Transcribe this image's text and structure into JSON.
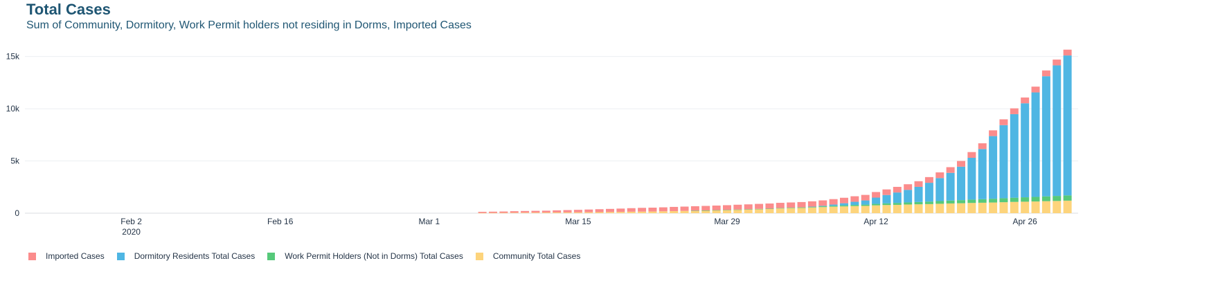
{
  "header": {
    "title": "Total Cases",
    "subtitle": "Sum of Community, Dormitory, Work Permit holders not residing in Dorms, Imported Cases"
  },
  "chart_data": {
    "type": "bar",
    "stacked": true,
    "x_start": "2020-01-23",
    "x_end": "2020-05-01",
    "x_ticks": [
      {
        "date": "2020-02-02",
        "label": "Feb 2",
        "sub": "2020"
      },
      {
        "date": "2020-02-16",
        "label": "Feb 16",
        "sub": ""
      },
      {
        "date": "2020-03-01",
        "label": "Mar 1",
        "sub": ""
      },
      {
        "date": "2020-03-15",
        "label": "Mar 15",
        "sub": ""
      },
      {
        "date": "2020-03-29",
        "label": "Mar 29",
        "sub": ""
      },
      {
        "date": "2020-04-12",
        "label": "Apr 12",
        "sub": ""
      },
      {
        "date": "2020-04-26",
        "label": "Apr 26",
        "sub": ""
      }
    ],
    "ylim": [
      0,
      16300
    ],
    "y_ticks": [
      {
        "value": 0,
        "label": "0"
      },
      {
        "value": 5000,
        "label": "5k"
      },
      {
        "value": 10000,
        "label": "10k"
      },
      {
        "value": 15000,
        "label": "15k"
      }
    ],
    "grid": true,
    "legend_position": "bottom-left",
    "x": [
      "2020-03-06",
      "2020-03-07",
      "2020-03-08",
      "2020-03-09",
      "2020-03-10",
      "2020-03-11",
      "2020-03-12",
      "2020-03-13",
      "2020-03-14",
      "2020-03-15",
      "2020-03-16",
      "2020-03-17",
      "2020-03-18",
      "2020-03-19",
      "2020-03-20",
      "2020-03-21",
      "2020-03-22",
      "2020-03-23",
      "2020-03-24",
      "2020-03-25",
      "2020-03-26",
      "2020-03-27",
      "2020-03-28",
      "2020-03-29",
      "2020-03-30",
      "2020-03-31",
      "2020-04-01",
      "2020-04-02",
      "2020-04-03",
      "2020-04-04",
      "2020-04-05",
      "2020-04-06",
      "2020-04-07",
      "2020-04-08",
      "2020-04-09",
      "2020-04-10",
      "2020-04-11",
      "2020-04-12",
      "2020-04-13",
      "2020-04-14",
      "2020-04-15",
      "2020-04-16",
      "2020-04-17",
      "2020-04-18",
      "2020-04-19",
      "2020-04-20",
      "2020-04-21",
      "2020-04-22",
      "2020-04-23",
      "2020-04-24",
      "2020-04-25",
      "2020-04-26",
      "2020-04-27",
      "2020-04-28",
      "2020-04-29",
      "2020-04-30"
    ],
    "series": [
      {
        "name": "Community Total Cases",
        "color": "#fdd47c",
        "values": [
          20,
          25,
          30,
          40,
          50,
          55,
          60,
          70,
          75,
          80,
          90,
          100,
          110,
          120,
          140,
          150,
          160,
          180,
          200,
          220,
          240,
          260,
          280,
          300,
          330,
          350,
          380,
          400,
          450,
          480,
          500,
          550,
          580,
          620,
          650,
          680,
          700,
          750,
          780,
          800,
          830,
          850,
          870,
          900,
          930,
          950,
          980,
          1000,
          1020,
          1050,
          1080,
          1100,
          1120,
          1150,
          1170,
          1200
        ]
      },
      {
        "name": "Work Permit Holders (Not in Dorms) Total Cases",
        "color": "#56c97a",
        "values": [
          0,
          0,
          0,
          0,
          0,
          0,
          0,
          0,
          0,
          0,
          0,
          0,
          0,
          0,
          0,
          0,
          0,
          0,
          0,
          0,
          5,
          5,
          10,
          15,
          20,
          25,
          30,
          35,
          40,
          45,
          55,
          65,
          75,
          85,
          100,
          110,
          120,
          140,
          160,
          180,
          200,
          220,
          240,
          260,
          280,
          300,
          320,
          340,
          360,
          380,
          400,
          420,
          440,
          460,
          480,
          500
        ]
      },
      {
        "name": "Dormitory Residents Total Cases",
        "color": "#4fb6e3",
        "values": [
          0,
          0,
          0,
          0,
          0,
          0,
          0,
          0,
          0,
          0,
          0,
          0,
          0,
          0,
          0,
          0,
          0,
          0,
          0,
          0,
          0,
          0,
          0,
          0,
          0,
          0,
          0,
          0,
          0,
          0,
          0,
          10,
          50,
          120,
          200,
          300,
          400,
          600,
          800,
          1000,
          1200,
          1450,
          1800,
          2200,
          2650,
          3200,
          4000,
          4800,
          6000,
          7000,
          8000,
          9000,
          10000,
          11500,
          12500,
          13400
        ]
      },
      {
        "name": "Imported Cases",
        "color": "#fb8c8c",
        "values": [
          110,
          120,
          130,
          150,
          160,
          170,
          180,
          200,
          220,
          240,
          260,
          280,
          300,
          320,
          340,
          360,
          370,
          380,
          400,
          410,
          420,
          430,
          440,
          450,
          460,
          470,
          480,
          490,
          500,
          500,
          510,
          510,
          520,
          520,
          525,
          530,
          530,
          535,
          535,
          540,
          540,
          540,
          545,
          545,
          545,
          550,
          550,
          550,
          550,
          555,
          555,
          555,
          555,
          555,
          555,
          555
        ]
      }
    ],
    "legend_order": [
      "Imported Cases",
      "Dormitory Residents Total Cases",
      "Work Permit Holders (Not in Dorms) Total Cases",
      "Community Total Cases"
    ]
  }
}
